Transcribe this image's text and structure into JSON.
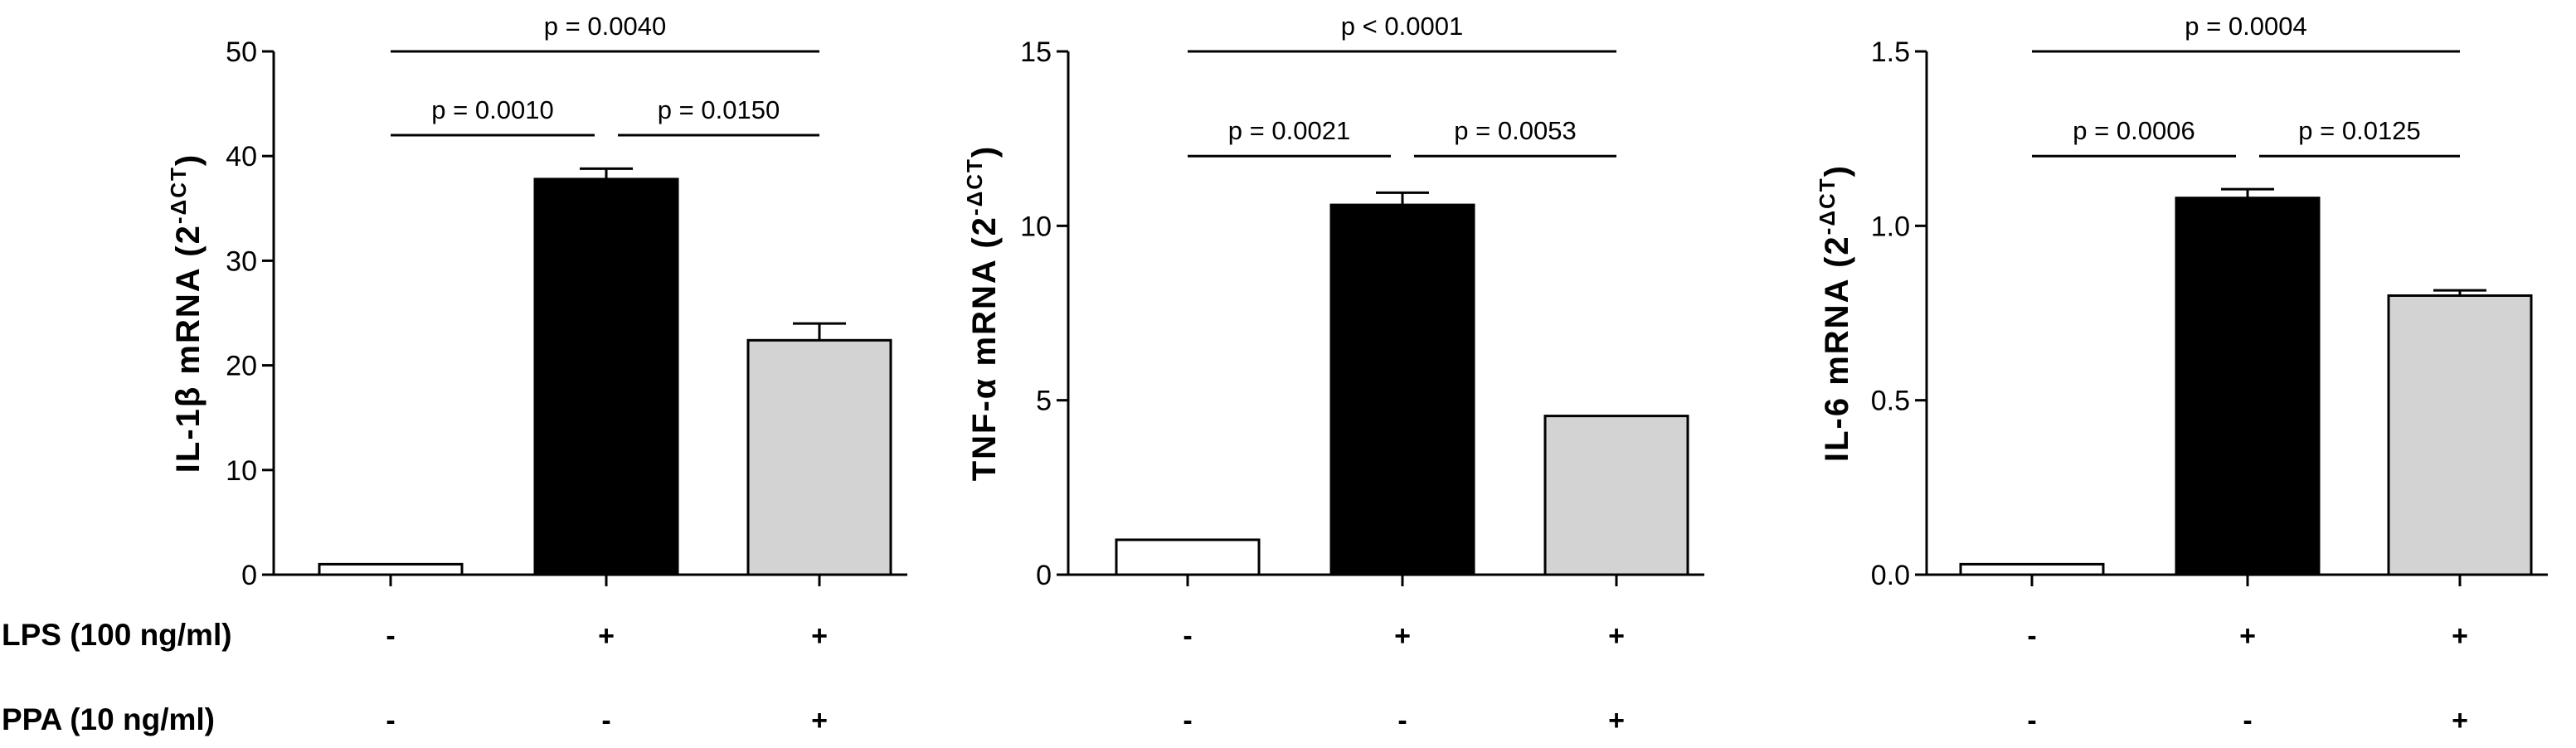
{
  "conditions": {
    "lps_label": "LPS (100 ng/ml)",
    "ppa_label": "PPA (10 ng/ml)",
    "lps_signs": [
      "-",
      "+",
      "+"
    ],
    "ppa_signs": [
      "-",
      "-",
      "+"
    ]
  },
  "chart_data": [
    {
      "type": "bar",
      "ylabel_main": "IL-1β mRNA",
      "ylabel_sup": "(2",
      "ylabel_exp": "-ΔCT",
      "ylabel_close": ")",
      "ylim": [
        0,
        50
      ],
      "yticks": [
        0,
        10,
        20,
        30,
        40,
        50
      ],
      "ytick_labels": [
        "0",
        "10",
        "20",
        "30",
        "40",
        "50"
      ],
      "values": [
        1.0,
        37.8,
        22.4
      ],
      "errors": [
        0,
        1.0,
        1.6
      ],
      "bar_colors": [
        "#ffffff",
        "#000000",
        "#d3d3d3"
      ],
      "comparisons": [
        {
          "from": 0,
          "to": 1,
          "label": "p = 0.0010",
          "y": 42
        },
        {
          "from": 1,
          "to": 2,
          "label": "p = 0.0150",
          "y": 42
        },
        {
          "from": 0,
          "to": 2,
          "label": "p = 0.0040",
          "y": 50
        }
      ]
    },
    {
      "type": "bar",
      "ylabel_main": "TNF-α mRNA",
      "ylabel_sup": "(2",
      "ylabel_exp": "-ΔCT",
      "ylabel_close": ")",
      "ylim": [
        0,
        15
      ],
      "yticks": [
        0,
        5,
        10,
        15
      ],
      "ytick_labels": [
        "0",
        "5",
        "10",
        "15"
      ],
      "values": [
        1.0,
        10.6,
        4.55
      ],
      "errors": [
        0,
        0.35,
        0
      ],
      "bar_colors": [
        "#ffffff",
        "#000000",
        "#d3d3d3"
      ],
      "comparisons": [
        {
          "from": 0,
          "to": 1,
          "label": "p = 0.0021",
          "y": 12.0
        },
        {
          "from": 1,
          "to": 2,
          "label": "p = 0.0053",
          "y": 12.0
        },
        {
          "from": 0,
          "to": 2,
          "label": "p < 0.0001",
          "y": 15.0
        }
      ]
    },
    {
      "type": "bar",
      "ylabel_main": "IL-6 mRNA",
      "ylabel_sup": "(2",
      "ylabel_exp": "-ΔCT",
      "ylabel_close": ")",
      "ylim": [
        0,
        1.5
      ],
      "yticks": [
        0,
        0.5,
        1.0,
        1.5
      ],
      "ytick_labels": [
        "0.0",
        "0.5",
        "1.0",
        "1.5"
      ],
      "values": [
        0.03,
        1.08,
        0.8
      ],
      "errors": [
        0,
        0.025,
        0.015
      ],
      "bar_colors": [
        "#ffffff",
        "#000000",
        "#d3d3d3"
      ],
      "comparisons": [
        {
          "from": 0,
          "to": 1,
          "label": "p = 0.0006",
          "y": 1.2
        },
        {
          "from": 1,
          "to": 2,
          "label": "p = 0.0125",
          "y": 1.2
        },
        {
          "from": 0,
          "to": 2,
          "label": "p = 0.0004",
          "y": 1.5
        }
      ]
    }
  ]
}
